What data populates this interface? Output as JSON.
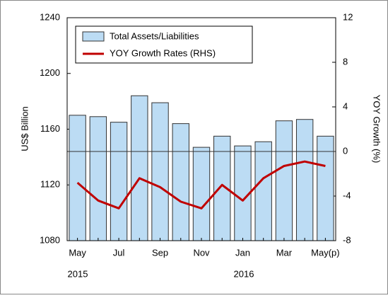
{
  "chart_data": {
    "type": "bar-line",
    "categories": [
      "May",
      null,
      "Jul",
      null,
      "Sep",
      null,
      "Nov",
      null,
      "Jan",
      null,
      "Mar",
      null,
      "May(p)"
    ],
    "year_labels": [
      "2015",
      "2016"
    ],
    "ylabel": "US$ Billion",
    "y2label": "YOY Growth (%)",
    "ylim": [
      1080,
      1240
    ],
    "yticks": [
      1080,
      1120,
      1160,
      1200,
      1240
    ],
    "y2lim": [
      -8,
      12
    ],
    "y2ticks": [
      -8,
      -4,
      0,
      4,
      8,
      12
    ],
    "legend": "upper left",
    "series": [
      {
        "name": "Total Assets/Liabilities",
        "color": "#bcdcf4",
        "values": [
          1170,
          1169,
          1165,
          1184,
          1179,
          1164,
          1147,
          1155,
          1148,
          1151,
          1166,
          1167,
          1155
        ]
      },
      {
        "name": "YOY Growth Rates (RHS)",
        "color": "#c00000",
        "axis": "y2",
        "values": [
          -2.8,
          -4.4,
          -5.1,
          -2.4,
          -3.2,
          -4.5,
          -5.1,
          -3.0,
          -4.4,
          -2.4,
          -1.3,
          -0.9,
          -1.3
        ]
      }
    ]
  }
}
